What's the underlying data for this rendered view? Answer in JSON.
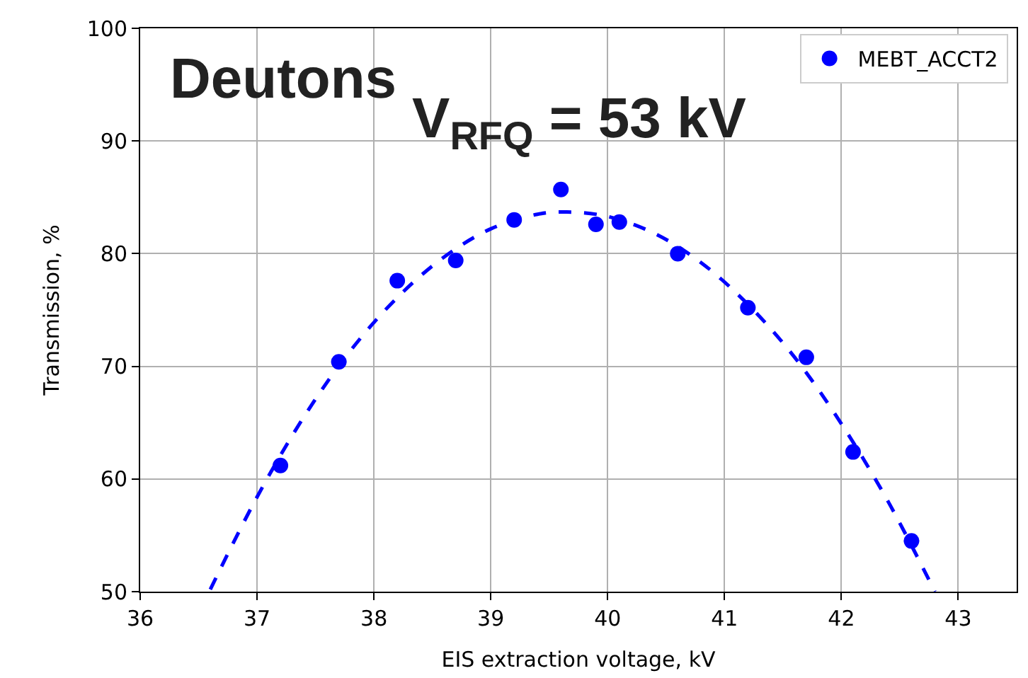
{
  "chart_data": {
    "type": "scatter",
    "xlabel": "EIS extraction voltage, kV",
    "ylabel": "Transmission, %",
    "annotations": [
      "Deutons",
      "V$_{RFQ}$ = 53 kV"
    ],
    "series": [
      {
        "name": "MEBT_ACCT2",
        "color": "#0000ff",
        "marker": "circle",
        "x": [
          37.2,
          37.7,
          38.2,
          38.7,
          39.2,
          39.6,
          39.9,
          40.1,
          40.6,
          41.2,
          41.7,
          42.1,
          42.6
        ],
        "values": [
          61.2,
          70.4,
          77.6,
          79.4,
          83.0,
          85.7,
          82.6,
          82.8,
          80.0,
          75.2,
          70.8,
          62.4,
          54.5
        ]
      },
      {
        "type": "line",
        "color": "#0000ff",
        "line_style": "dashed",
        "x": [
          36.6,
          37.0,
          37.4,
          37.8,
          38.2,
          38.6,
          39.0,
          39.4,
          39.65,
          40.0,
          40.4,
          40.8,
          41.2,
          41.6,
          42.0,
          42.4,
          42.8
        ],
        "values": [
          50.2,
          58.4,
          65.5,
          71.4,
          76.1,
          79.7,
          82.2,
          83.5,
          83.7,
          83.3,
          81.8,
          79.2,
          75.5,
          70.8,
          64.9,
          58.0,
          50.0
        ]
      }
    ],
    "xlim": [
      36,
      43.5
    ],
    "xticks": [
      36,
      37,
      38,
      39,
      40,
      41,
      42,
      43
    ],
    "ylim": [
      50,
      100
    ],
    "yticks": [
      50,
      60,
      70,
      80,
      90,
      100
    ],
    "grid": true,
    "legend": "top right"
  }
}
